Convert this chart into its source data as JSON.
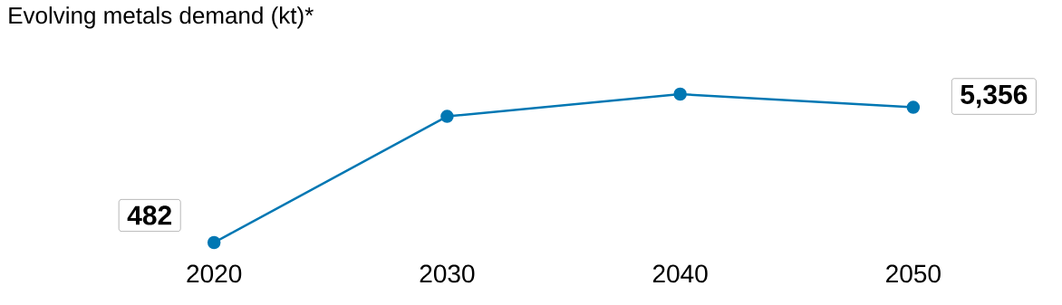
{
  "chart_data": {
    "type": "line",
    "title": "Evolving metals demand (kt)*",
    "categories": [
      "2020",
      "2030",
      "2040",
      "2050"
    ],
    "values": [
      482,
      5030,
      5830,
      5356
    ],
    "value_labels": [
      "482",
      null,
      null,
      "5,356"
    ],
    "color": "#0077b3",
    "marker": "circle",
    "line_style": "solid"
  }
}
